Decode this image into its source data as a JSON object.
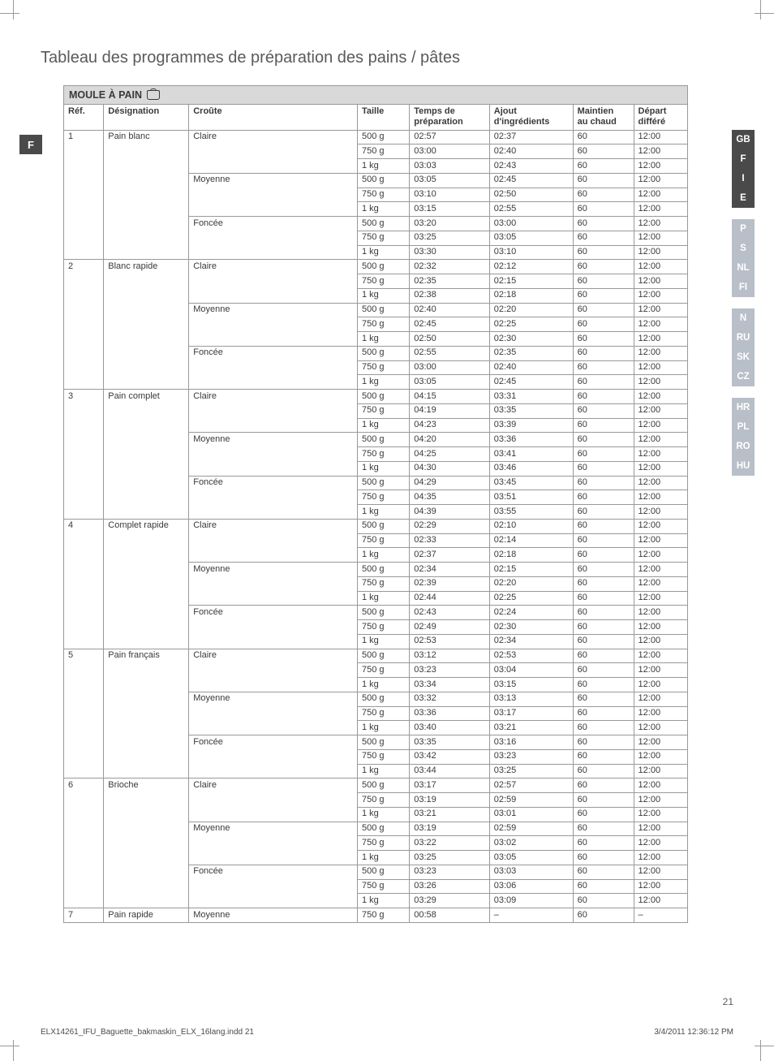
{
  "title": "Tableau des programmes de préparation des pains / pâtes",
  "left_badge": "F",
  "table_title": "MOULE À PAIN",
  "columns": [
    "Réf.",
    "Désignation",
    "Croûte",
    "Taille",
    "Temps de préparation",
    "Ajout d'ingrédients",
    "Maintien au chaud",
    "Départ différé"
  ],
  "header_lines": {
    "temps": [
      "Temps de",
      "préparation"
    ],
    "ajout": [
      "Ajout",
      "d'ingrédients"
    ],
    "maintien": [
      "Maintien",
      "au chaud"
    ],
    "depart": [
      "Départ",
      "différé"
    ]
  },
  "programs": [
    {
      "ref": "1",
      "designation": "Pain blanc",
      "croutes": [
        {
          "name": "Claire",
          "sizes": [
            [
              "500 g",
              "02:57",
              "02:37",
              "60",
              "12:00"
            ],
            [
              "750 g",
              "03:00",
              "02:40",
              "60",
              "12:00"
            ],
            [
              "1 kg",
              "03:03",
              "02:43",
              "60",
              "12:00"
            ]
          ]
        },
        {
          "name": "Moyenne",
          "sizes": [
            [
              "500 g",
              "03:05",
              "02:45",
              "60",
              "12:00"
            ],
            [
              "750 g",
              "03:10",
              "02:50",
              "60",
              "12:00"
            ],
            [
              "1 kg",
              "03:15",
              "02:55",
              "60",
              "12:00"
            ]
          ]
        },
        {
          "name": "Foncée",
          "sizes": [
            [
              "500 g",
              "03:20",
              "03:00",
              "60",
              "12:00"
            ],
            [
              "750 g",
              "03:25",
              "03:05",
              "60",
              "12:00"
            ],
            [
              "1 kg",
              "03:30",
              "03:10",
              "60",
              "12:00"
            ]
          ]
        }
      ]
    },
    {
      "ref": "2",
      "designation": "Blanc rapide",
      "croutes": [
        {
          "name": "Claire",
          "sizes": [
            [
              "500 g",
              "02:32",
              "02:12",
              "60",
              "12:00"
            ],
            [
              "750 g",
              "02:35",
              "02:15",
              "60",
              "12:00"
            ],
            [
              "1 kg",
              "02:38",
              "02:18",
              "60",
              "12:00"
            ]
          ]
        },
        {
          "name": "Moyenne",
          "sizes": [
            [
              "500 g",
              "02:40",
              "02:20",
              "60",
              "12:00"
            ],
            [
              "750 g",
              "02:45",
              "02:25",
              "60",
              "12:00"
            ],
            [
              "1 kg",
              "02:50",
              "02:30",
              "60",
              "12:00"
            ]
          ]
        },
        {
          "name": "Foncée",
          "sizes": [
            [
              "500 g",
              "02:55",
              "02:35",
              "60",
              "12:00"
            ],
            [
              "750 g",
              "03:00",
              "02:40",
              "60",
              "12:00"
            ],
            [
              "1 kg",
              "03:05",
              "02:45",
              "60",
              "12:00"
            ]
          ]
        }
      ]
    },
    {
      "ref": "3",
      "designation": "Pain complet",
      "croutes": [
        {
          "name": "Claire",
          "sizes": [
            [
              "500 g",
              "04:15",
              "03:31",
              "60",
              "12:00"
            ],
            [
              "750 g",
              "04:19",
              "03:35",
              "60",
              "12:00"
            ],
            [
              "1 kg",
              "04:23",
              "03:39",
              "60",
              "12:00"
            ]
          ]
        },
        {
          "name": "Moyenne",
          "sizes": [
            [
              "500 g",
              "04:20",
              "03:36",
              "60",
              "12:00"
            ],
            [
              "750 g",
              "04:25",
              "03:41",
              "60",
              "12:00"
            ],
            [
              "1 kg",
              "04:30",
              "03:46",
              "60",
              "12:00"
            ]
          ]
        },
        {
          "name": "Foncée",
          "sizes": [
            [
              "500 g",
              "04:29",
              "03:45",
              "60",
              "12:00"
            ],
            [
              "750 g",
              "04:35",
              "03:51",
              "60",
              "12:00"
            ],
            [
              "1 kg",
              "04:39",
              "03:55",
              "60",
              "12:00"
            ]
          ]
        }
      ]
    },
    {
      "ref": "4",
      "designation": "Complet rapide",
      "croutes": [
        {
          "name": "Claire",
          "sizes": [
            [
              "500 g",
              "02:29",
              "02:10",
              "60",
              "12:00"
            ],
            [
              "750 g",
              "02:33",
              "02:14",
              "60",
              "12:00"
            ],
            [
              "1 kg",
              "02:37",
              "02:18",
              "60",
              "12:00"
            ]
          ]
        },
        {
          "name": "Moyenne",
          "sizes": [
            [
              "500 g",
              "02:34",
              "02:15",
              "60",
              "12:00"
            ],
            [
              "750 g",
              "02:39",
              "02:20",
              "60",
              "12:00"
            ],
            [
              "1 kg",
              "02:44",
              "02:25",
              "60",
              "12:00"
            ]
          ]
        },
        {
          "name": "Foncée",
          "sizes": [
            [
              "500 g",
              "02:43",
              "02:24",
              "60",
              "12:00"
            ],
            [
              "750 g",
              "02:49",
              "02:30",
              "60",
              "12:00"
            ],
            [
              "1 kg",
              "02:53",
              "02:34",
              "60",
              "12:00"
            ]
          ]
        }
      ]
    },
    {
      "ref": "5",
      "designation": "Pain français",
      "croutes": [
        {
          "name": "Claire",
          "sizes": [
            [
              "500 g",
              "03:12",
              "02:53",
              "60",
              "12:00"
            ],
            [
              "750 g",
              "03:23",
              "03:04",
              "60",
              "12:00"
            ],
            [
              "1 kg",
              "03:34",
              "03:15",
              "60",
              "12:00"
            ]
          ]
        },
        {
          "name": "Moyenne",
          "sizes": [
            [
              "500 g",
              "03:32",
              "03:13",
              "60",
              "12:00"
            ],
            [
              "750 g",
              "03:36",
              "03:17",
              "60",
              "12:00"
            ],
            [
              "1 kg",
              "03:40",
              "03:21",
              "60",
              "12:00"
            ]
          ]
        },
        {
          "name": "Foncée",
          "sizes": [
            [
              "500 g",
              "03:35",
              "03:16",
              "60",
              "12:00"
            ],
            [
              "750 g",
              "03:42",
              "03:23",
              "60",
              "12:00"
            ],
            [
              "1 kg",
              "03:44",
              "03:25",
              "60",
              "12:00"
            ]
          ]
        }
      ]
    },
    {
      "ref": "6",
      "designation": "Brioche",
      "croutes": [
        {
          "name": "Claire",
          "sizes": [
            [
              "500 g",
              "03:17",
              "02:57",
              "60",
              "12:00"
            ],
            [
              "750 g",
              "03:19",
              "02:59",
              "60",
              "12:00"
            ],
            [
              "1 kg",
              "03:21",
              "03:01",
              "60",
              "12:00"
            ]
          ]
        },
        {
          "name": "Moyenne",
          "sizes": [
            [
              "500 g",
              "03:19",
              "02:59",
              "60",
              "12:00"
            ],
            [
              "750 g",
              "03:22",
              "03:02",
              "60",
              "12:00"
            ],
            [
              "1 kg",
              "03:25",
              "03:05",
              "60",
              "12:00"
            ]
          ]
        },
        {
          "name": "Foncée",
          "sizes": [
            [
              "500 g",
              "03:23",
              "03:03",
              "60",
              "12:00"
            ],
            [
              "750 g",
              "03:26",
              "03:06",
              "60",
              "12:00"
            ],
            [
              "1 kg",
              "03:29",
              "03:09",
              "60",
              "12:00"
            ]
          ]
        }
      ]
    },
    {
      "ref": "7",
      "designation": "Pain rapide",
      "croutes": [
        {
          "name": "Moyenne",
          "sizes": [
            [
              "750 g",
              "00:58",
              "–",
              "60",
              "–"
            ]
          ]
        }
      ]
    }
  ],
  "tabs": [
    {
      "label": "GB",
      "bg": "#4a4a4a",
      "fg": "#ffffff"
    },
    {
      "label": "F",
      "bg": "#4a4a4a",
      "fg": "#ffffff"
    },
    {
      "label": "I",
      "bg": "#4a4a4a",
      "fg": "#ffffff"
    },
    {
      "label": "E",
      "bg": "#4a4a4a",
      "fg": "#ffffff"
    },
    {
      "spacer": true
    },
    {
      "label": "P",
      "bg": "#b9bfc8",
      "fg": "#ffffff"
    },
    {
      "label": "S",
      "bg": "#b9bfc8",
      "fg": "#ffffff"
    },
    {
      "label": "NL",
      "bg": "#b9bfc8",
      "fg": "#ffffff"
    },
    {
      "label": "FI",
      "bg": "#b9bfc8",
      "fg": "#ffffff"
    },
    {
      "spacer": true
    },
    {
      "label": "N",
      "bg": "#b9bfc8",
      "fg": "#ffffff"
    },
    {
      "label": "RU",
      "bg": "#b9bfc8",
      "fg": "#ffffff"
    },
    {
      "label": "SK",
      "bg": "#b9bfc8",
      "fg": "#ffffff"
    },
    {
      "label": "CZ",
      "bg": "#b9bfc8",
      "fg": "#ffffff"
    },
    {
      "spacer": true
    },
    {
      "label": "HR",
      "bg": "#b9bfc8",
      "fg": "#ffffff"
    },
    {
      "label": "PL",
      "bg": "#b9bfc8",
      "fg": "#ffffff"
    },
    {
      "label": "RO",
      "bg": "#b9bfc8",
      "fg": "#ffffff"
    },
    {
      "label": "HU",
      "bg": "#b9bfc8",
      "fg": "#ffffff"
    }
  ],
  "page_number": "21",
  "footer_left": "ELX14261_IFU_Baguette_bakmaskin_ELX_16lang.indd   21",
  "footer_right": "3/4/2011   12:36:12 PM"
}
